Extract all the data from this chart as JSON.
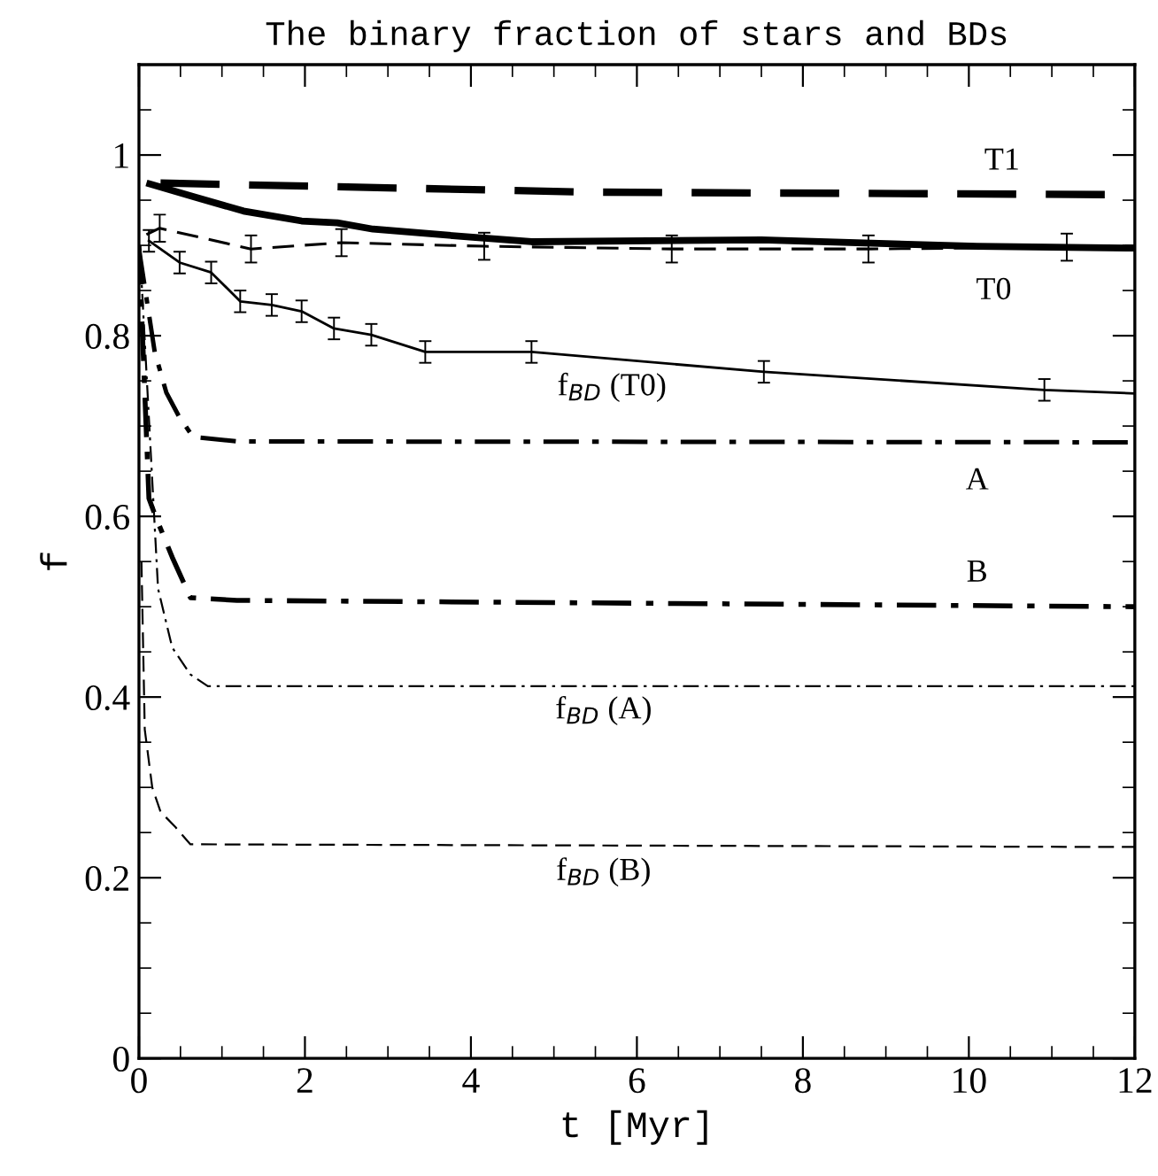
{
  "chart_data": {
    "type": "line",
    "title": "The binary fraction of stars and BDs",
    "xlabel": "t [Myr]",
    "ylabel": "f",
    "xlim": [
      0,
      12
    ],
    "ylim": [
      0,
      1.1
    ],
    "xticks": [
      0,
      {
        "value": 0.5,
        "label": null
      },
      {
        "value": 1,
        "label": null
      },
      {
        "value": 1.5,
        "label": null
      },
      2,
      {
        "value": 2.5,
        "label": null
      },
      {
        "value": 3,
        "label": null
      },
      {
        "value": 3.5,
        "label": null
      },
      4,
      {
        "value": 4.5,
        "label": null
      },
      {
        "value": 5,
        "label": null
      },
      {
        "value": 5.5,
        "label": null
      },
      6,
      {
        "value": 6.5,
        "label": null
      },
      {
        "value": 7,
        "label": null
      },
      {
        "value": 7.5,
        "label": null
      },
      8,
      {
        "value": 8.5,
        "label": null
      },
      {
        "value": 9,
        "label": null
      },
      {
        "value": 9.5,
        "label": null
      },
      10,
      {
        "value": 10.5,
        "label": null
      },
      {
        "value": 11,
        "label": null
      },
      {
        "value": 11.5,
        "label": null
      },
      12
    ],
    "yticks": [
      0,
      {
        "value": 0.05,
        "label": null
      },
      {
        "value": 0.1,
        "label": null
      },
      {
        "value": 0.15,
        "label": null
      },
      0.2,
      {
        "value": 0.25,
        "label": null
      },
      {
        "value": 0.3,
        "label": null
      },
      {
        "value": 0.35,
        "label": null
      },
      0.4,
      {
        "value": 0.45,
        "label": null
      },
      {
        "value": 0.5,
        "label": null
      },
      {
        "value": 0.55,
        "label": null
      },
      0.6,
      {
        "value": 0.65,
        "label": null
      },
      {
        "value": 0.7,
        "label": null
      },
      {
        "value": 0.75,
        "label": null
      },
      0.8,
      {
        "value": 0.85,
        "label": null
      },
      {
        "value": 0.9,
        "label": null
      },
      {
        "value": 0.95,
        "label": null
      },
      1,
      {
        "value": 1.05,
        "label": null
      }
    ],
    "grid": false,
    "legend": false,
    "marker": "none",
    "series": [
      {
        "color": "#000000",
        "line_style": "dashed",
        "x": [
          0.26,
          5.4,
          12
        ],
        "values": [
          0.969,
          0.959,
          0.956
        ]
      },
      {
        "color": "#000000",
        "line_style": "solid",
        "x": [
          0.13,
          0.69,
          1.26,
          1.96,
          2.39,
          2.82,
          4.02,
          4.73,
          7.5,
          10.1,
          12
        ],
        "values": [
          0.968,
          0.953,
          0.938,
          0.927,
          0.925,
          0.918,
          0.909,
          0.904,
          0.906,
          0.899,
          0.897
        ]
      },
      {
        "color": "#000000",
        "line_style": "dashed",
        "x": [
          0.09,
          0.25,
          1.35,
          2.44,
          4.16,
          6.42,
          8.79,
          11.18,
          12
        ],
        "values": [
          0.912,
          0.919,
          0.896,
          0.903,
          0.899,
          0.896,
          0.896,
          0.898,
          0.896
        ],
        "errors": [
          null,
          0.015,
          0.015,
          0.015,
          0.015,
          0.015,
          0.015,
          0.015,
          null
        ]
      },
      {
        "color": "#000000",
        "line_style": "solid",
        "x": [
          0.12,
          0.49,
          0.87,
          1.22,
          1.6,
          1.96,
          2.35,
          2.8,
          3.45,
          4.73,
          7.53,
          10.91,
          12
        ],
        "values": [
          0.905,
          0.881,
          0.87,
          0.838,
          0.834,
          0.827,
          0.808,
          0.801,
          0.782,
          0.782,
          0.76,
          0.74,
          0.736
        ],
        "errors": [
          0.012,
          0.012,
          0.012,
          0.012,
          0.012,
          0.012,
          0.012,
          0.012,
          0.012,
          0.012,
          0.012,
          0.012,
          null
        ]
      },
      {
        "color": "#000000",
        "line_style": "dashdot",
        "x": [
          0,
          0.19,
          0.33,
          0.48,
          0.65,
          1.18,
          12
        ],
        "values": [
          0.896,
          0.782,
          0.737,
          0.711,
          0.688,
          0.683,
          0.682
        ]
      },
      {
        "color": "#000000",
        "line_style": "dashdot",
        "x": [
          0,
          0.12,
          0.2,
          0.4,
          0.62,
          1.18,
          12
        ],
        "values": [
          0.9,
          0.62,
          0.6,
          0.555,
          0.51,
          0.507,
          0.5
        ]
      },
      {
        "color": "#000000",
        "line_style": "dashdot",
        "x": [
          0.02,
          0.23,
          0.4,
          0.62,
          0.83,
          12
        ],
        "values": [
          0.88,
          0.52,
          0.455,
          0.425,
          0.412,
          0.412
        ]
      },
      {
        "color": "#000000",
        "line_style": "dashed",
        "x": [
          0.03,
          0.07,
          0.16,
          0.26,
          0.44,
          0.62,
          12
        ],
        "values": [
          0.55,
          0.364,
          0.3,
          0.273,
          0.256,
          0.237,
          0.234
        ]
      }
    ],
    "annotations": [
      {
        "text": "T1",
        "x": 10.4,
        "y": 0.957
      },
      {
        "text": "T0",
        "x": 10.3,
        "y": 0.898
      },
      {
        "text": "f$_{BD}$ (T0)",
        "x": 5.7,
        "y": 0.778
      },
      {
        "text": "A",
        "x": 10.1,
        "y": 0.682
      },
      {
        "text": "B",
        "x": 10.1,
        "y": 0.501
      },
      {
        "text": "f$_{BD}$ (A)",
        "x": 5.6,
        "y": 0.412
      },
      {
        "text": "f$_{BD}$ (B)",
        "x": 5.6,
        "y": 0.236
      }
    ]
  }
}
